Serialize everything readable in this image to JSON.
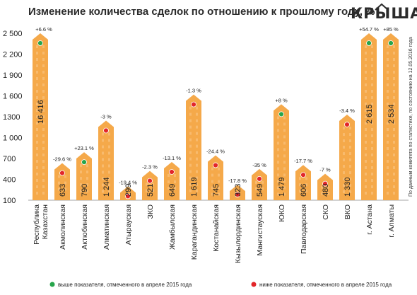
{
  "header": {
    "title": "Изменение количества сделок по отношению к прошлому году, %",
    "logo": "КРЫША"
  },
  "side_note": "По данным комитета по статистике, по состоянию на 12.05.2016 года",
  "legend": {
    "above": "выше показателя, отмеченного в апреле 2015 года",
    "below": "ниже показателя, отмеченного в апреле 2015 года"
  },
  "colors": {
    "bar": "#f5a94a",
    "window": "#f9c98a",
    "above": "#27a54b",
    "below": "#e2262a"
  },
  "chart_data": {
    "type": "bar",
    "y_ticks": [
      "100",
      "400",
      "700",
      "1 000",
      "1300",
      "1 600",
      "1 900",
      "2 200",
      "2 500"
    ],
    "categories": [
      "Республика Казахстан",
      "Акмолинская",
      "Актюбинская",
      "Алматинская",
      "Атырауская",
      "ЗКО",
      "Жамбылская",
      "Карагандинская",
      "Костанайская",
      "Кызылординская",
      "Мангистауская",
      "ЮКО",
      "Павлодарская",
      "СКО",
      "ВКО",
      "г. Астана",
      "г. Алматы"
    ],
    "category_lines": [
      [
        "Республика",
        "Казахстан"
      ],
      [
        "Акмолинская"
      ],
      [
        "Актюбинская"
      ],
      [
        "Алматинская"
      ],
      [
        "Атырауская"
      ],
      [
        "ЗКО"
      ],
      [
        "Жамбылская"
      ],
      [
        "Карагандинская"
      ],
      [
        "Костанайская"
      ],
      [
        "Кызылординская"
      ],
      [
        "Мангистауская"
      ],
      [
        "ЮКО"
      ],
      [
        "Павлодарская"
      ],
      [
        "СКО"
      ],
      [
        "ВКО"
      ],
      [
        "г. Астана"
      ],
      [
        "г. Алматы"
      ]
    ],
    "values": [
      16416,
      633,
      790,
      1244,
      299,
      521,
      649,
      1619,
      745,
      323,
      549,
      1479,
      606,
      480,
      1330,
      2615,
      2534
    ],
    "value_labels": [
      "16 416",
      "633",
      "790",
      "1 244",
      "299",
      "521",
      "649",
      "1 619",
      "745",
      "323",
      "549",
      "1 479",
      "606",
      "480",
      "1 330",
      "2 615",
      "2 534"
    ],
    "change_labels": [
      "+6.6 %",
      "-29.6 %",
      "+23.1 %",
      "-3 %",
      "-19.4 %",
      "-2.3 %",
      "-13.1 %",
      "-1.3 %",
      "-24.4 %",
      "-17.8 %",
      "-35 %",
      "+8 %",
      "-17.7 %",
      "-7 %",
      "-3.4 %",
      "+54.7 %",
      "+85 %"
    ],
    "status": [
      "above",
      "below",
      "above",
      "below",
      "below",
      "below",
      "below",
      "below",
      "below",
      "below",
      "below",
      "above",
      "below",
      "below",
      "below",
      "above",
      "above"
    ],
    "ylim": [
      100,
      2500
    ],
    "grid": false,
    "legend_position": "bottom"
  }
}
